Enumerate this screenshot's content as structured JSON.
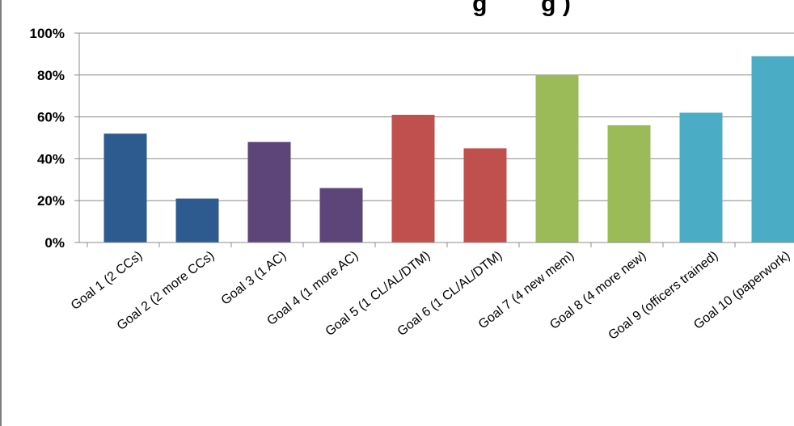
{
  "chart_data": {
    "type": "bar",
    "title": "g        g )",
    "categories": [
      "Goal 1 (2 CCs)",
      "Goal 2 (2 more CCs)",
      "Goal 3 (1 AC)",
      "Goal 4 (1 more AC)",
      "Goal 5 (1 CL/AL/DTM)",
      "Goal 6 (1 CL/AL/DTM)",
      "Goal 7 (4 new mem)",
      "Goal 8 (4 more new)",
      "Goal 9 (officers trained)",
      "Goal 10 (paperwork)"
    ],
    "values": [
      0.52,
      0.21,
      0.48,
      0.26,
      0.61,
      0.45,
      0.8,
      0.56,
      0.62,
      0.89
    ],
    "bar_colors": [
      "#2e5b8f",
      "#2e5b8f",
      "#5d4479",
      "#5d4479",
      "#c0504d",
      "#c0504d",
      "#9bbb59",
      "#9bbb59",
      "#4bacc6",
      "#4bacc6"
    ],
    "ylim": [
      0,
      1
    ],
    "yticks": [
      "0%",
      "20%",
      "40%",
      "60%",
      "80%",
      "100%"
    ],
    "grid": true,
    "legend": "none",
    "xlabel": "",
    "ylabel": ""
  }
}
